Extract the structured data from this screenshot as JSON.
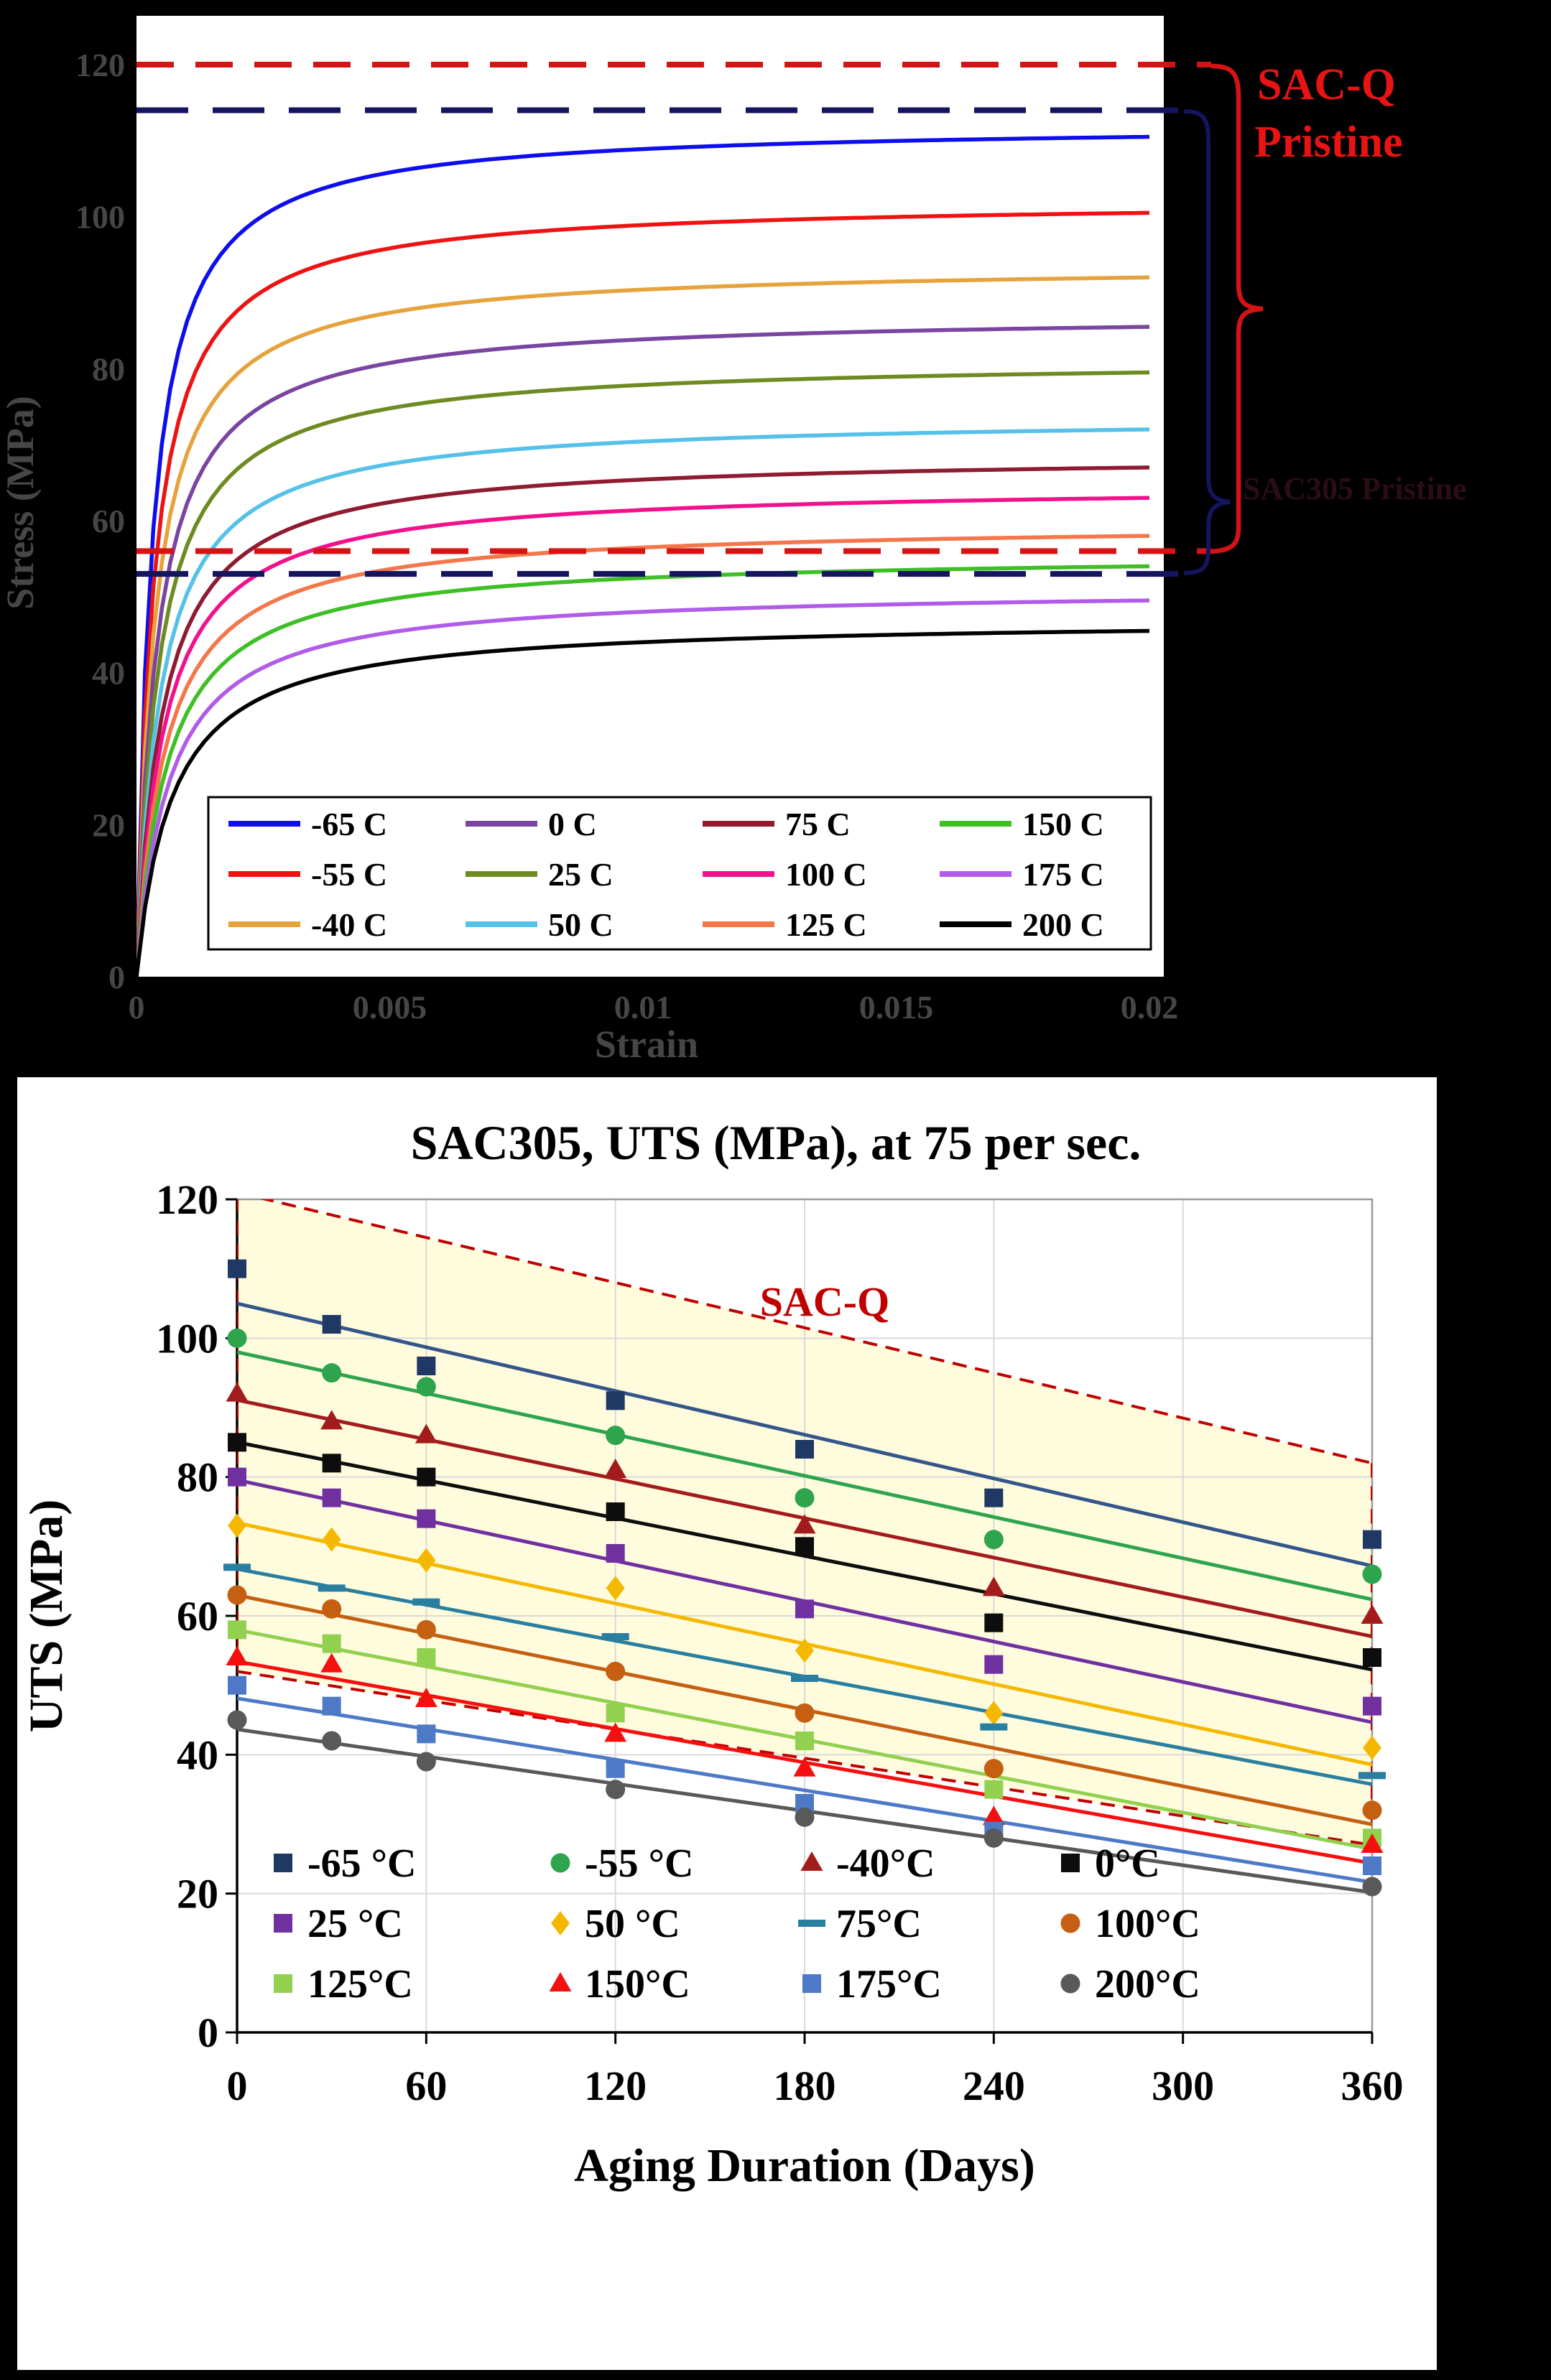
{
  "chart_data": [
    {
      "type": "line",
      "title": "",
      "xlabel": "Strain",
      "ylabel": "Stress (MPa)",
      "xlim": [
        0,
        0.02
      ],
      "ylim": [
        0,
        120
      ],
      "xticks": [
        0,
        0.005,
        0.01,
        0.015,
        0.02
      ],
      "xtick_labels": [
        "0",
        "0.005",
        "0.01",
        "0.015",
        "0.02"
      ],
      "yticks": [
        0,
        20,
        40,
        60,
        80,
        100,
        120
      ],
      "series": [
        {
          "name": "-65 C",
          "color": "#0d0dee",
          "stress_at_002": 110.5,
          "tau": 0.0003
        },
        {
          "name": "-55 C",
          "color": "#ee1313",
          "stress_at_002": 100.5,
          "tau": 0.00033
        },
        {
          "name": "-40 C",
          "color": "#e6a33c",
          "stress_at_002": 92.0,
          "tau": 0.00036
        },
        {
          "name": "0 C",
          "color": "#7a45a0",
          "stress_at_002": 85.5,
          "tau": 0.0004
        },
        {
          "name": "25 C",
          "color": "#6e8b22",
          "stress_at_002": 79.5,
          "tau": 0.00043
        },
        {
          "name": "50 C",
          "color": "#55c1e9",
          "stress_at_002": 72.0,
          "tau": 0.00046
        },
        {
          "name": "75 C",
          "color": "#8e1b30",
          "stress_at_002": 67.0,
          "tau": 0.0005
        },
        {
          "name": "100 C",
          "color": "#f2118c",
          "stress_at_002": 63.0,
          "tau": 0.00053
        },
        {
          "name": "125 C",
          "color": "#f4764a",
          "stress_at_002": 58.0,
          "tau": 0.00056
        },
        {
          "name": "150 C",
          "color": "#3fbf26",
          "stress_at_002": 54.0,
          "tau": 0.0006
        },
        {
          "name": "175 C",
          "color": "#b05ce8",
          "stress_at_002": 49.5,
          "tau": 0.00064
        },
        {
          "name": "200 C",
          "color": "#000000",
          "stress_at_002": 45.5,
          "tau": 0.0007
        }
      ],
      "reference_lines": [
        {
          "label": "SAC-Q Pristine",
          "color": "#d41414",
          "upper": 120,
          "lower": 56
        },
        {
          "label": "SAC305 Pristine",
          "color": "#14145f",
          "upper": 114,
          "lower": 53
        }
      ],
      "annotations": [
        {
          "text": "SAC-Q",
          "color": "#e81414"
        },
        {
          "text": "Pristine",
          "color": "#e81414"
        },
        {
          "text": "SAC305 Pristine",
          "color": "#2b0d16"
        }
      ]
    },
    {
      "type": "scatter",
      "title": "SAC305, UTS (MPa), at 75 per sec.",
      "xlabel": "Aging Duration (Days)",
      "ylabel": "UTS (MPa)",
      "xlim": [
        0,
        360
      ],
      "ylim": [
        0,
        120
      ],
      "xticks": [
        0,
        60,
        120,
        180,
        240,
        300,
        360
      ],
      "yticks": [
        0,
        20,
        40,
        60,
        80,
        100,
        120
      ],
      "aging_days": [
        0,
        30,
        60,
        120,
        180,
        240,
        360
      ],
      "series": [
        {
          "name": "-65 °C",
          "marker": "square",
          "color": "#1f3864",
          "line_color": "#35568a",
          "values": [
            110,
            102,
            96,
            91,
            84,
            77,
            71
          ]
        },
        {
          "name": "-55 °C",
          "marker": "circle",
          "color": "#2ea44c",
          "values": [
            100,
            95,
            93,
            86,
            77,
            71,
            66
          ]
        },
        {
          "name": "-40°C",
          "marker": "triangle",
          "color": "#a31c1c",
          "values": [
            92,
            88,
            86,
            81,
            73,
            64,
            60
          ]
        },
        {
          "name": "0°C",
          "marker": "square",
          "color": "#0d0d0d",
          "values": [
            85,
            82,
            80,
            75,
            70,
            59,
            54
          ]
        },
        {
          "name": "25 °C",
          "marker": "square",
          "color": "#7030a0",
          "values": [
            80,
            77,
            74,
            69,
            61,
            53,
            47
          ]
        },
        {
          "name": "50 °C",
          "marker": "diamond",
          "color": "#f5b800",
          "values": [
            73,
            71,
            68,
            64,
            55,
            46,
            41
          ]
        },
        {
          "name": "75°C",
          "marker": "dash",
          "color": "#2a7fa0",
          "values": [
            67,
            64,
            62,
            57,
            51,
            44,
            37
          ]
        },
        {
          "name": "100°C",
          "marker": "circle",
          "color": "#c55f11",
          "values": [
            63,
            61,
            58,
            52,
            46,
            38,
            32
          ]
        },
        {
          "name": "125°C",
          "marker": "square",
          "color": "#92d050",
          "values": [
            58,
            56,
            54,
            46,
            42,
            35,
            28
          ]
        },
        {
          "name": "150°C",
          "marker": "triangle",
          "color": "#f50f0f",
          "values": [
            54,
            53,
            48,
            43,
            38,
            31,
            27
          ]
        },
        {
          "name": "175°C",
          "marker": "square",
          "color": "#4d79c7",
          "values": [
            50,
            47,
            43,
            38,
            33,
            29,
            24
          ]
        },
        {
          "name": "200°C",
          "marker": "circle",
          "color": "#595959",
          "values": [
            45,
            42,
            39,
            35,
            31,
            28,
            21
          ]
        }
      ],
      "band": {
        "label": "SAC-Q",
        "line_color": "#c00000",
        "fill_color": "#fffcde",
        "upper": [
          121,
          82
        ],
        "lower": [
          52,
          27
        ]
      }
    }
  ]
}
